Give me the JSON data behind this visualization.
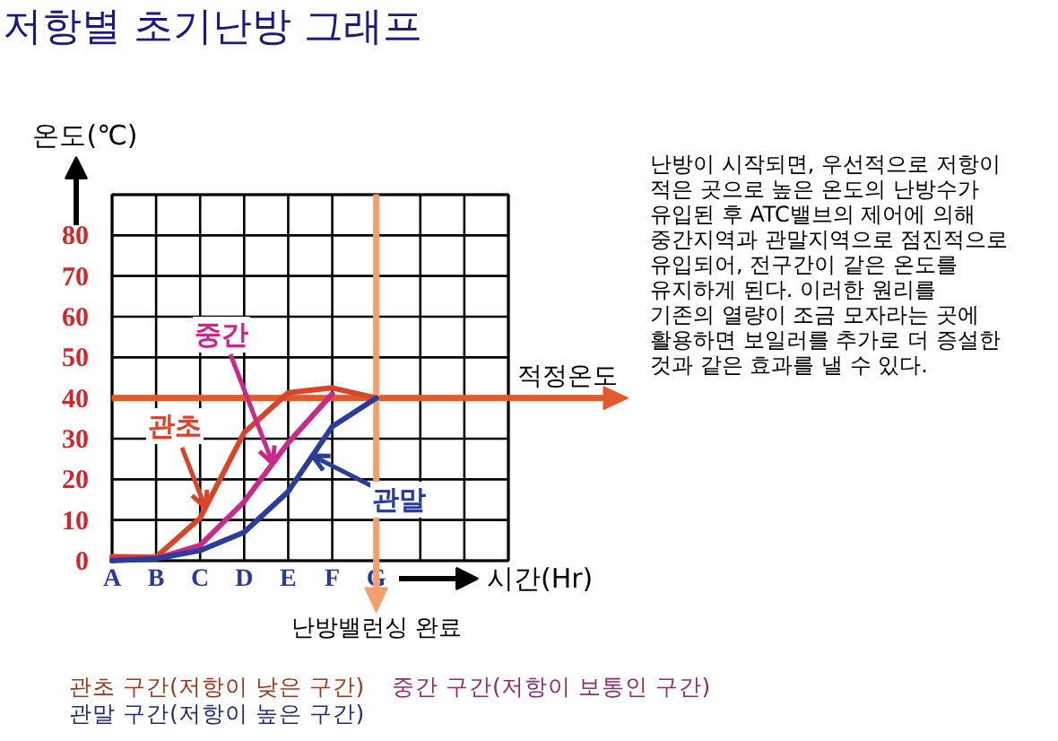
{
  "chart_data": {
    "type": "line",
    "title": "저항별 초기난방 그래프",
    "xlabel": "시간(Hr)",
    "ylabel": "온도(℃)",
    "categories": [
      "A",
      "B",
      "C",
      "D",
      "E",
      "F",
      "G",
      null,
      null,
      null
    ],
    "ylim": [
      0,
      90
    ],
    "yticks": [
      0,
      10,
      20,
      30,
      40,
      50,
      60,
      70,
      80,
      {
        "value": 90,
        "label": null
      }
    ],
    "grid": true,
    "line_style": "solid",
    "series": [
      {
        "name": "관초",
        "color": "#d8462a",
        "values": [
          1,
          0.9,
          10.5,
          31.5,
          41.3,
          42.5,
          40,
          null,
          null,
          null
        ]
      },
      {
        "name": "중간",
        "color": "#c82a8a",
        "values": [
          0.3,
          0.5,
          3.8,
          14.5,
          29,
          41,
          null,
          null,
          null,
          null
        ]
      },
      {
        "name": "관말",
        "color": "#2b3d9b",
        "values": [
          0,
          0.5,
          2.5,
          7,
          17,
          33,
          40,
          null,
          null,
          null
        ]
      }
    ],
    "ref_lines": [
      {
        "axis": "y",
        "value": 40,
        "label": "적정온도",
        "color": "#e2592b"
      },
      {
        "axis": "x",
        "value": "G",
        "label": "난방밸런싱 완료",
        "color": "#f3a06e"
      }
    ],
    "annotations": [
      "난방이 시작되면, 우선적으로 저항이\n적은 곳으로 높은 온도의 난방수가\n유입된 후 ATC밸브의 제어에 의해\n중간지역과 관말지역으로 점진적으로\n유입되어, 전구간이 같은 온도를\n유지하게 된다. 이러한 원리를\n기존의 열량이 조금 모자라는 곳에\n활용하면 보일러를 추가로 더 증설한\n것과 같은 효과를 낼 수 있다.",
      "관초 구간(저항이 낮은 구간)",
      "중간 구간(저항이 보통인 구간)",
      "관말 구간(저항이 높은 구간)"
    ]
  }
}
